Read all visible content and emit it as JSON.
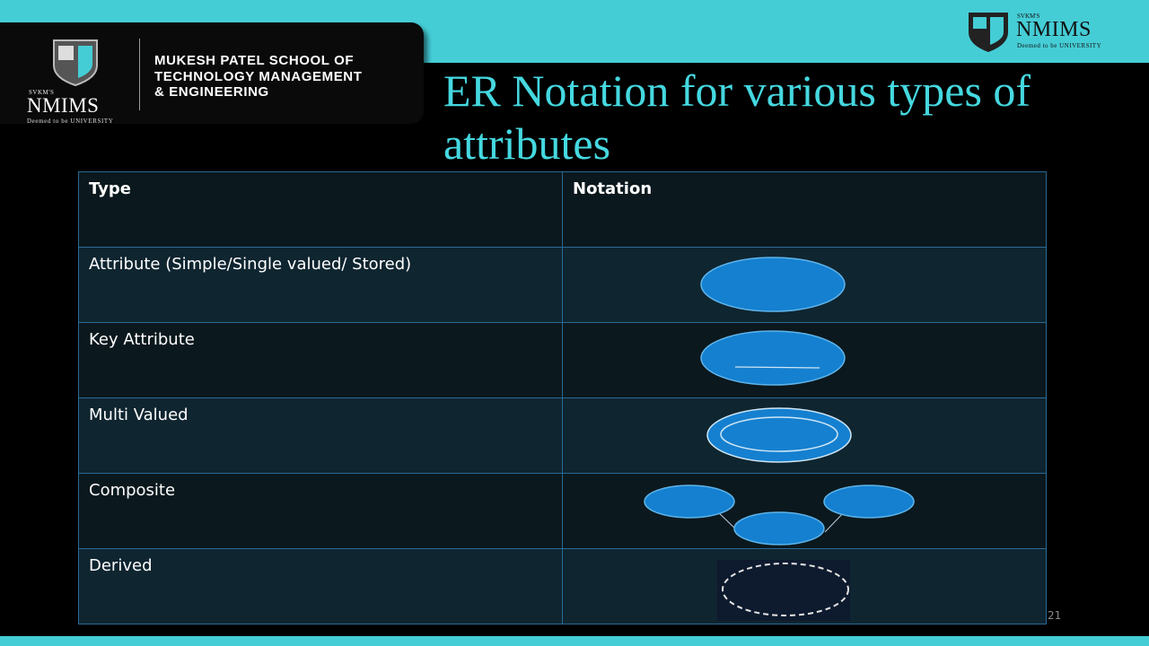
{
  "slide": {
    "title": "ER Notation for various types of attributes",
    "page_number": "21"
  },
  "banner": {
    "brand_small": "SVKM'S",
    "brand_big": "NMIMS",
    "brand_sub": "Deemed to be UNIVERSITY",
    "school_lines": [
      "MUKESH PATEL SCHOOL OF",
      "TECHNOLOGY MANAGEMENT",
      "& ENGINEERING"
    ]
  },
  "logo_right": {
    "brand_small": "SVKM'S",
    "brand_big": "NMIMS",
    "brand_sub": "Deemed to be UNIVERSITY"
  },
  "table": {
    "headers": [
      "Type",
      "Notation"
    ],
    "rows": [
      {
        "type": "Attribute (Simple/Single valued/ Stored)",
        "notation": "ellipse"
      },
      {
        "type": "Key Attribute",
        "notation": "ellipse-underlined"
      },
      {
        "type": "Multi Valued",
        "notation": "double-ellipse"
      },
      {
        "type": "Composite",
        "notation": "connected-ellipses"
      },
      {
        "type": "Derived",
        "notation": "dashed-ellipse"
      }
    ]
  },
  "colors": {
    "accent": "#45cdd6",
    "title": "#45d8e0",
    "shape_fill": "#1580d0",
    "shape_stroke": "#5fb4ea"
  }
}
